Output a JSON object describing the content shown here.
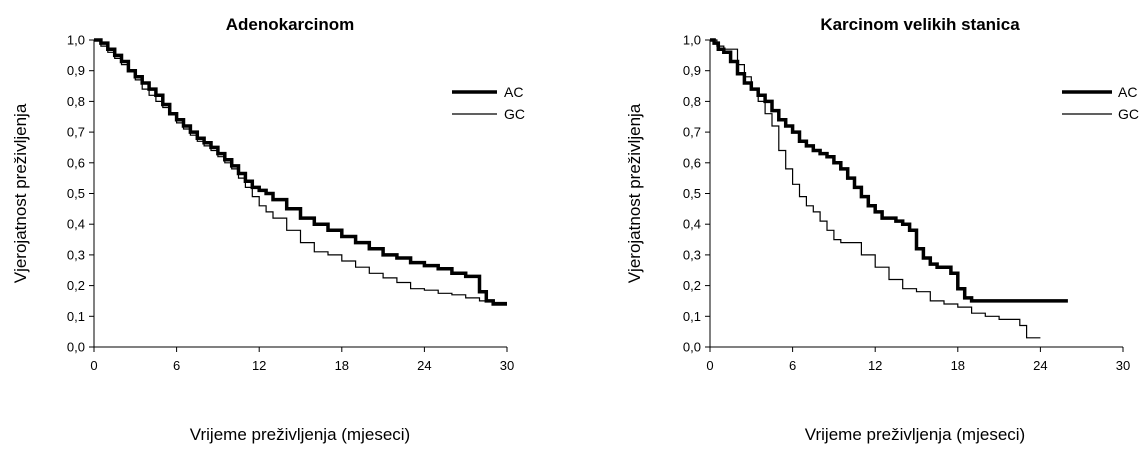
{
  "chart_data": [
    {
      "type": "line",
      "title": "Adenokarcinom",
      "xlabel": "Vrijeme preživljenja (mjeseci)",
      "ylabel": "Vjerojatnost preživljenja",
      "xlim": [
        0,
        30
      ],
      "ylim": [
        0,
        1
      ],
      "xticks": [
        "0",
        "6",
        "12",
        "18",
        "24",
        "30"
      ],
      "yticks": [
        "0,0",
        "0,1",
        "0,2",
        "0,3",
        "0,4",
        "0,5",
        "0,6",
        "0,7",
        "0,8",
        "0,9",
        "1,0"
      ],
      "grid": false,
      "legend": "top-right",
      "series": [
        {
          "name": "AC",
          "color": "#000000",
          "line_width": 3.5,
          "x": [
            0,
            0.5,
            1,
            1.5,
            2,
            2.5,
            3,
            3.5,
            4,
            4.5,
            5,
            5.5,
            6,
            6.5,
            7,
            7.5,
            8,
            8.5,
            9,
            9.5,
            10,
            10.5,
            11,
            11.5,
            12,
            12.5,
            13,
            14,
            15,
            16,
            17,
            18,
            19,
            20,
            21,
            22,
            23,
            24,
            25,
            26,
            27,
            27.5,
            28,
            28.5,
            29,
            30
          ],
          "y": [
            1.0,
            0.99,
            0.97,
            0.95,
            0.93,
            0.9,
            0.88,
            0.86,
            0.84,
            0.82,
            0.79,
            0.76,
            0.74,
            0.72,
            0.7,
            0.68,
            0.665,
            0.65,
            0.63,
            0.61,
            0.59,
            0.565,
            0.54,
            0.52,
            0.51,
            0.5,
            0.48,
            0.45,
            0.42,
            0.4,
            0.38,
            0.36,
            0.34,
            0.32,
            0.3,
            0.29,
            0.275,
            0.265,
            0.255,
            0.24,
            0.23,
            0.23,
            0.18,
            0.15,
            0.14,
            0.14
          ]
        },
        {
          "name": "GC",
          "color": "#000000",
          "line_width": 1.2,
          "x": [
            0,
            0.5,
            1,
            1.5,
            2,
            2.5,
            3,
            3.5,
            4,
            4.5,
            5,
            5.5,
            6,
            6.5,
            7,
            7.5,
            8,
            8.5,
            9,
            9.5,
            10,
            10.5,
            11,
            11.5,
            12,
            12.5,
            13,
            14,
            15,
            16,
            17,
            18,
            19,
            20,
            21,
            22,
            23,
            24,
            25,
            26,
            27,
            28,
            29,
            30
          ],
          "y": [
            1.0,
            0.98,
            0.96,
            0.94,
            0.92,
            0.9,
            0.87,
            0.84,
            0.82,
            0.8,
            0.78,
            0.76,
            0.73,
            0.71,
            0.69,
            0.67,
            0.655,
            0.64,
            0.62,
            0.6,
            0.58,
            0.55,
            0.52,
            0.49,
            0.46,
            0.44,
            0.42,
            0.38,
            0.34,
            0.31,
            0.3,
            0.28,
            0.26,
            0.24,
            0.225,
            0.21,
            0.19,
            0.185,
            0.175,
            0.17,
            0.16,
            0.15,
            0.145,
            0.145
          ]
        }
      ]
    },
    {
      "type": "line",
      "title": "Karcinom velikih stanica",
      "xlabel": "Vrijeme preživljenja (mjeseci)",
      "ylabel": "Vjerojatnost preživljenja",
      "xlim": [
        0,
        30
      ],
      "ylim": [
        0,
        1
      ],
      "xticks": [
        "0",
        "6",
        "12",
        "18",
        "24",
        "30"
      ],
      "yticks": [
        "0,0",
        "0,1",
        "0,2",
        "0,3",
        "0,4",
        "0,5",
        "0,6",
        "0,7",
        "0,8",
        "0,9",
        "1,0"
      ],
      "grid": false,
      "legend": "top-right",
      "series": [
        {
          "name": "AC",
          "color": "#000000",
          "line_width": 3.5,
          "x": [
            0,
            0.3,
            0.6,
            1,
            1.5,
            2,
            2.5,
            3,
            3.5,
            4,
            4.5,
            5,
            5.5,
            6,
            6.5,
            7,
            7.5,
            8,
            8.5,
            9,
            9.5,
            10,
            10.5,
            11,
            11.5,
            12,
            12.5,
            13,
            13.5,
            14,
            14.5,
            15,
            15.5,
            16,
            16.5,
            17,
            17.5,
            18,
            18.5,
            19,
            20,
            22,
            24,
            26
          ],
          "y": [
            1.0,
            0.99,
            0.97,
            0.96,
            0.93,
            0.89,
            0.86,
            0.84,
            0.82,
            0.8,
            0.77,
            0.74,
            0.72,
            0.7,
            0.67,
            0.655,
            0.64,
            0.63,
            0.62,
            0.6,
            0.58,
            0.55,
            0.52,
            0.49,
            0.46,
            0.44,
            0.42,
            0.42,
            0.41,
            0.4,
            0.38,
            0.32,
            0.29,
            0.27,
            0.26,
            0.26,
            0.24,
            0.19,
            0.16,
            0.15,
            0.15,
            0.15,
            0.15,
            0.15
          ]
        },
        {
          "name": "GC",
          "color": "#000000",
          "line_width": 1.2,
          "x": [
            0,
            0.5,
            1,
            1.5,
            2,
            2.5,
            3,
            3.5,
            4,
            4.5,
            5,
            5.5,
            6,
            6.5,
            7,
            7.5,
            8,
            8.5,
            9,
            9.5,
            10,
            11,
            12,
            13,
            14,
            15,
            16,
            17,
            18,
            19,
            20,
            21,
            22,
            22.5,
            23,
            23.5,
            24
          ],
          "y": [
            1.0,
            0.98,
            0.97,
            0.97,
            0.92,
            0.88,
            0.84,
            0.8,
            0.76,
            0.72,
            0.64,
            0.58,
            0.53,
            0.49,
            0.46,
            0.44,
            0.41,
            0.38,
            0.35,
            0.34,
            0.34,
            0.3,
            0.26,
            0.22,
            0.19,
            0.18,
            0.15,
            0.14,
            0.13,
            0.11,
            0.1,
            0.09,
            0.09,
            0.07,
            0.03,
            0.03,
            0.03
          ]
        }
      ]
    }
  ]
}
